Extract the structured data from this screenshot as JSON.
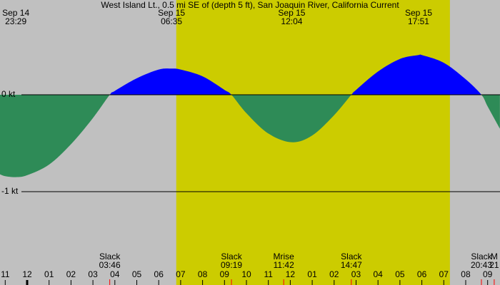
{
  "chart_data": {
    "type": "area",
    "title": "West Island Lt., 0.5 mi SE of (depth 5 ft), San Joaquin River, California Current",
    "background": "#c0c0c0",
    "daylight": {
      "start": 6.8,
      "end": 19.28,
      "color": "#cccc00"
    },
    "x": [
      -1.24,
      -1,
      -0.517,
      0,
      1,
      2,
      3,
      3.767,
      4,
      5,
      6,
      6.583,
      7,
      8,
      9,
      9.317,
      10,
      11,
      12.067,
      13,
      14,
      14.783,
      15,
      16,
      17,
      17.85,
      18,
      19,
      20,
      20.717,
      21,
      21.56
    ],
    "values": [
      -0.82,
      -0.84,
      -0.85,
      -0.83,
      -0.72,
      -0.51,
      -0.24,
      0,
      0.04,
      0.17,
      0.26,
      0.27,
      0.26,
      0.19,
      0.05,
      0,
      -0.19,
      -0.4,
      -0.49,
      -0.42,
      -0.21,
      0,
      0.05,
      0.24,
      0.37,
      0.41,
      0.41,
      0.33,
      0.16,
      0,
      -0.12,
      -0.35
    ],
    "color": "#0000ff",
    "negative_color": "#2e8b57",
    "xlim": [
      -1.238,
      21.564
    ],
    "ylim": [
      -1.963,
      0.978
    ],
    "yticks": [
      {
        "value": 0,
        "label": "0 kt"
      },
      {
        "value": -1,
        "label": "-1 kt"
      }
    ],
    "xticks": [
      {
        "value": -1,
        "label": "11"
      },
      {
        "value": 0,
        "label": "12"
      },
      {
        "value": 1,
        "label": "01"
      },
      {
        "value": 2,
        "label": "02"
      },
      {
        "value": 3,
        "label": "03"
      },
      {
        "value": 4,
        "label": "04"
      },
      {
        "value": 5,
        "label": "05"
      },
      {
        "value": 6,
        "label": "06"
      },
      {
        "value": 7,
        "label": "07"
      },
      {
        "value": 8,
        "label": "08"
      },
      {
        "value": 9,
        "label": "09"
      },
      {
        "value": 10,
        "label": "10"
      },
      {
        "value": 11,
        "label": "11"
      },
      {
        "value": 12,
        "label": "12"
      },
      {
        "value": 13,
        "label": "01"
      },
      {
        "value": 14,
        "label": "02"
      },
      {
        "value": 15,
        "label": "03"
      },
      {
        "value": 16,
        "label": "04"
      },
      {
        "value": 17,
        "label": "05"
      },
      {
        "value": 18,
        "label": "06"
      },
      {
        "value": 19,
        "label": "07"
      },
      {
        "value": 20,
        "label": "08"
      },
      {
        "value": 21,
        "label": "09"
      }
    ],
    "extremes": [
      {
        "date": "Sep 14",
        "time": "23:29",
        "x": -0.517
      },
      {
        "date": "Sep 15",
        "time": "06:35",
        "x": 6.583
      },
      {
        "date": "Sep 15",
        "time": "12:04",
        "x": 12.067
      },
      {
        "date": "Sep 15",
        "time": "17:51",
        "x": 17.85
      }
    ],
    "events": [
      {
        "label": "Slack",
        "time": "03:46",
        "x": 3.767
      },
      {
        "label": "Slack",
        "time": "09:19",
        "x": 9.317
      },
      {
        "label": "Mrise",
        "time": "11:42",
        "x": 11.7
      },
      {
        "label": "Slack",
        "time": "14:47",
        "x": 14.783
      },
      {
        "label": "Slack",
        "time": "20:43",
        "x": 20.717
      },
      {
        "label": "M",
        "time": "21",
        "x": 21.3
      }
    ]
  }
}
